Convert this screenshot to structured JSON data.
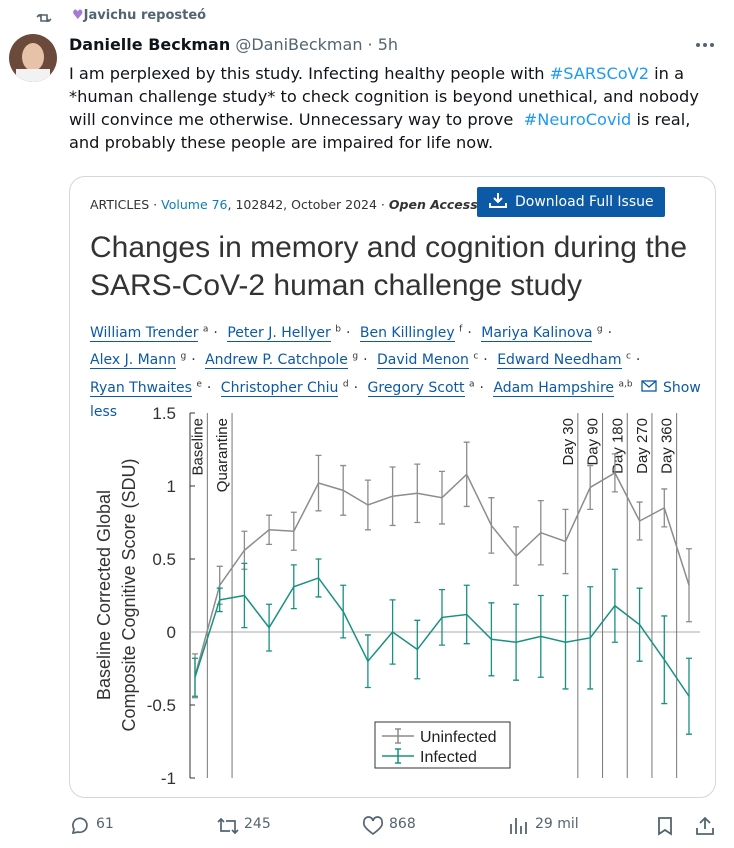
{
  "repost": {
    "label": "Javichu reposteó"
  },
  "tweet": {
    "author": {
      "name": "Danielle Beckman",
      "handle": "@DaniBeckman",
      "separator": "·",
      "time": "5h"
    },
    "text": [
      {
        "text": "I am perplexed by this study. Infecting healthy people with "
      },
      {
        "text": "#SARSCoV2",
        "link": true
      },
      {
        "text": " in a *human challenge study* to check cognition is beyond unethical, and nobody will convince me otherwise. Unnecessary way to prove  "
      },
      {
        "text": "#NeuroCovid",
        "link": true
      },
      {
        "text": " is real, and probably these people are impaired for life now."
      }
    ],
    "media": {
      "article": {
        "section": "ARTICLES",
        "separator": "·",
        "volume": "Volume 76",
        "details": ", 102842, October 2024",
        "access": "Open Access",
        "download": "Download Full Issue",
        "title": "Changes in memory and cognition during the SARS-CoV-2 human challenge study",
        "authors": [
          {
            "name": "William Trender",
            "sup": "a"
          },
          {
            "name": "Peter J. Hellyer",
            "sup": "b"
          },
          {
            "name": "Ben Killingley",
            "sup": "f"
          },
          {
            "name": "Mariya Kalinova",
            "sup": "g"
          },
          {
            "name": "Alex J. Mann",
            "sup": "g"
          },
          {
            "name": "Andrew P. Catchpole",
            "sup": "g"
          },
          {
            "name": "David Menon",
            "sup": "c"
          },
          {
            "name": "Edward Needham",
            "sup": "c"
          },
          {
            "name": "Ryan Thwaites",
            "sup": "e"
          },
          {
            "name": "Christopher Chiu",
            "sup": "d"
          },
          {
            "name": "Gregory Scott",
            "sup": "a"
          },
          {
            "name": "Adam Hampshire",
            "sup": "a,b"
          }
        ],
        "show_less": "Show less"
      },
      "chart": {
        "type": "line",
        "ylabel": [
          "Baseline Corrected Global",
          "Composite Cognitive Score (SDU)"
        ],
        "ylim": [
          -1,
          1.5
        ],
        "yticks": [
          -1,
          -0.5,
          0,
          0.5,
          1,
          1.5
        ],
        "phases": [
          "Baseline",
          "Quarantine",
          "Day 30",
          "Day 90",
          "Day 180",
          "Day 270",
          "Day 360"
        ],
        "series": [
          {
            "name": "Uninfected",
            "color": "#8c8c8c",
            "values": [
              -0.3,
              0.32,
              0.56,
              0.7,
              0.69,
              1.02,
              0.97,
              0.87,
              0.93,
              0.95,
              0.92,
              1.08,
              0.73,
              0.52,
              0.68,
              0.62,
              0.99,
              1.09,
              0.76,
              0.85,
              0.32
            ],
            "errors": [
              0.15,
              0.13,
              0.13,
              0.1,
              0.13,
              0.19,
              0.17,
              0.17,
              0.2,
              0.2,
              0.18,
              0.22,
              0.19,
              0.2,
              0.22,
              0.22,
              0.15,
              0.13,
              0.13,
              0.13,
              0.25
            ]
          },
          {
            "name": "Infected",
            "color": "#1a9080",
            "values": [
              -0.31,
              0.22,
              0.25,
              0.03,
              0.31,
              0.37,
              0.14,
              -0.2,
              0.0,
              -0.12,
              0.1,
              0.12,
              -0.05,
              -0.07,
              -0.03,
              -0.07,
              -0.04,
              0.18,
              0.05,
              -0.19,
              -0.44
            ],
            "errors": [
              0.13,
              0.08,
              0.22,
              0.16,
              0.15,
              0.13,
              0.18,
              0.18,
              0.22,
              0.2,
              0.19,
              0.2,
              0.25,
              0.26,
              0.28,
              0.32,
              0.35,
              0.25,
              0.25,
              0.3,
              0.26
            ]
          }
        ]
      }
    },
    "actions": {
      "replies": 61,
      "reposts": 245,
      "likes": 868,
      "views": "29 mil"
    }
  }
}
